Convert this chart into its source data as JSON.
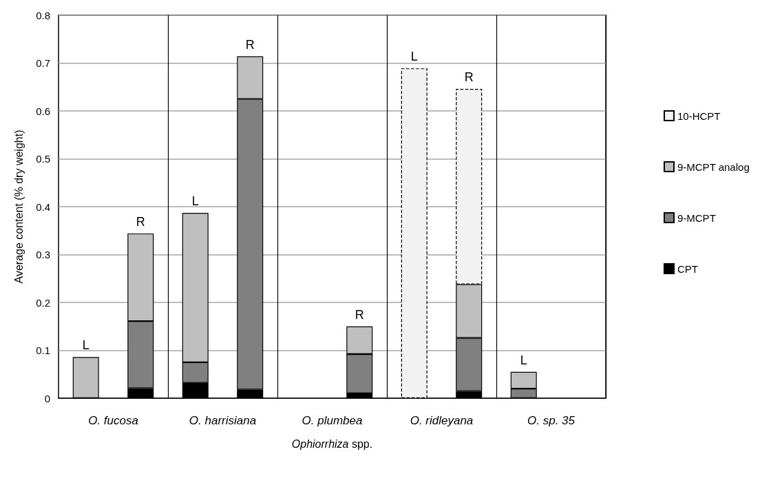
{
  "chart_data": {
    "type": "bar",
    "stacked": true,
    "xlabel": "Ophiorrhiza spp.",
    "ylabel": "Average content (% dry weight)",
    "categories": [
      "L",
      "R",
      "L",
      "R",
      null,
      "R",
      "L",
      "R",
      "L",
      null
    ],
    "annotations": [
      "O. fucosa",
      "O. harrisiana",
      "O. plumbea",
      "O. ridleyana",
      "O. sp. 35"
    ],
    "series": [
      {
        "name": "CPT",
        "color": "#000000",
        "values": [
          null,
          0.021,
          0.032,
          0.018,
          null,
          0.01,
          null,
          0.015,
          null,
          null
        ]
      },
      {
        "name": "9-MCPT",
        "color": "#808080",
        "values": [
          null,
          0.14,
          0.043,
          0.607,
          null,
          0.082,
          null,
          0.111,
          0.02,
          null
        ]
      },
      {
        "name": "9-MCPT analog",
        "color": "#bfbfbf",
        "values": [
          0.086,
          0.183,
          0.312,
          0.089,
          null,
          0.058,
          null,
          0.112,
          0.035,
          null
        ]
      },
      {
        "name": "10-HCPT",
        "color": "#f2f2f2",
        "line_style": "dashed",
        "values": [
          null,
          null,
          null,
          null,
          null,
          null,
          0.689,
          0.408,
          null,
          null
        ]
      }
    ],
    "ylim": [
      0,
      0.8
    ],
    "yticks": [
      0,
      0.1,
      0.2,
      0.3,
      0.4,
      0.5,
      0.6,
      0.7,
      0.8
    ],
    "grid": true,
    "legend": "right"
  }
}
